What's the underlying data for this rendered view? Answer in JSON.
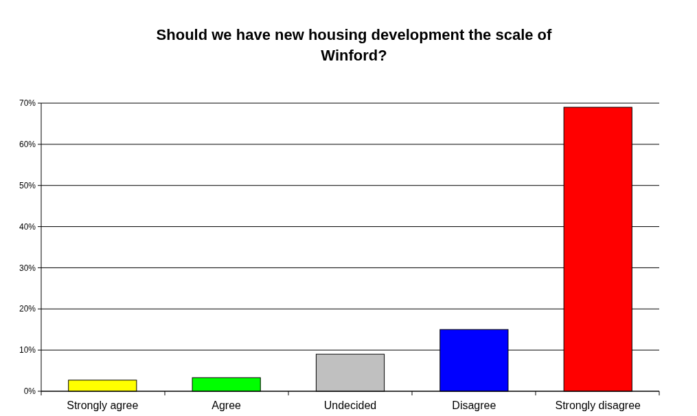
{
  "chart_data": {
    "type": "bar",
    "title": "Should we have new housing development the scale of Winford?",
    "categories": [
      "Strongly agree",
      "Agree",
      "Undecided",
      "Disagree",
      "Strongly disagree"
    ],
    "values": [
      2.7,
      3.3,
      9,
      15,
      69
    ],
    "colors": [
      "#ffff00",
      "#00ff00",
      "#c0c0c0",
      "#0000ff",
      "#ff0000"
    ],
    "ylim": [
      0,
      70
    ],
    "yticks": [
      {
        "value": 0,
        "label": "0%"
      },
      {
        "value": 10,
        "label": "10%"
      },
      {
        "value": 20,
        "label": "20%"
      },
      {
        "value": 30,
        "label": "30%"
      },
      {
        "value": 40,
        "label": "40%"
      },
      {
        "value": 50,
        "label": "50%"
      },
      {
        "value": 60,
        "label": "60%"
      },
      {
        "value": 70,
        "label": "70%"
      }
    ],
    "grid": "y"
  }
}
